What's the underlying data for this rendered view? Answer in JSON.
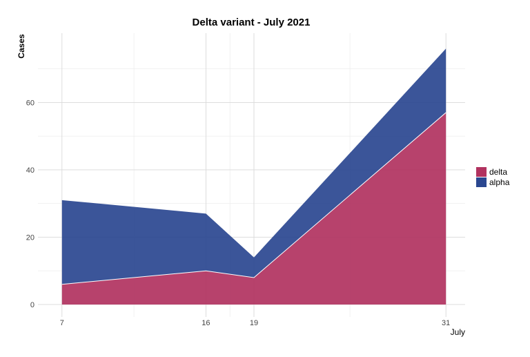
{
  "chart_data": {
    "type": "area",
    "stacked": true,
    "title": "Delta variant - July 2021",
    "xlabel": "July",
    "ylabel": "Cases",
    "x": [
      7,
      16,
      19,
      31
    ],
    "xticks": [
      "7",
      "16",
      "19",
      "31"
    ],
    "xlim": [
      5.5,
      32.2
    ],
    "ylim": [
      -3.7,
      80.6
    ],
    "yticks": [
      0,
      20,
      40,
      60
    ],
    "ytick_labels": [
      "0",
      "20",
      "40",
      "60"
    ],
    "grid": true,
    "legend_position": "right",
    "series": [
      {
        "name": "delta",
        "values": [
          6,
          10,
          8,
          57
        ],
        "color": "#b1325f"
      },
      {
        "name": "alpha",
        "values": [
          25,
          17,
          6,
          19
        ],
        "color": "#2a4790"
      }
    ]
  }
}
